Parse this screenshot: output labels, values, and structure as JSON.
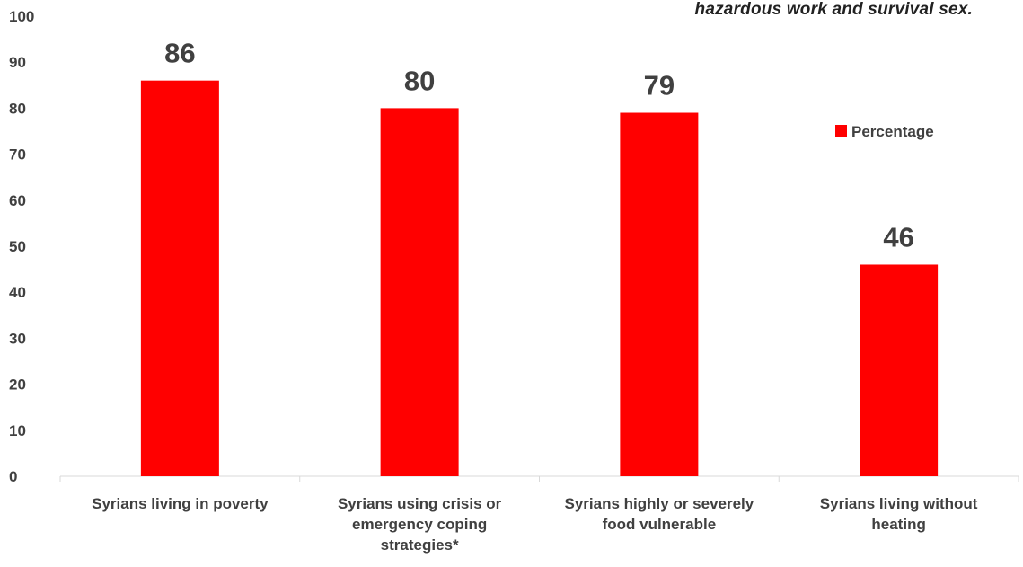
{
  "note": "hazardous work and survival sex.",
  "chart_data": {
    "type": "bar",
    "categories": [
      "Syrians living in poverty",
      "Syrians using crisis or emergency coping strategies*",
      "Syrians highly or severely food vulnerable",
      "Syrians living without heating"
    ],
    "category_lines": [
      [
        "Syrians living in poverty"
      ],
      [
        "Syrians using crisis or",
        "emergency coping",
        "strategies*"
      ],
      [
        "Syrians highly or severely",
        "food vulnerable"
      ],
      [
        "Syrians living without",
        "heating"
      ]
    ],
    "series": [
      {
        "name": "Percentage",
        "values": [
          86,
          80,
          79,
          46
        ],
        "color": "#ff0000"
      }
    ],
    "data_labels": [
      "86",
      "80",
      "79",
      "46"
    ],
    "ylim": [
      0,
      100
    ],
    "yticks": [
      "0",
      "10",
      "20",
      "30",
      "40",
      "50",
      "60",
      "70",
      "80",
      "90",
      "100"
    ],
    "grid": false,
    "legend": {
      "position": "right",
      "label": "Percentage"
    }
  }
}
